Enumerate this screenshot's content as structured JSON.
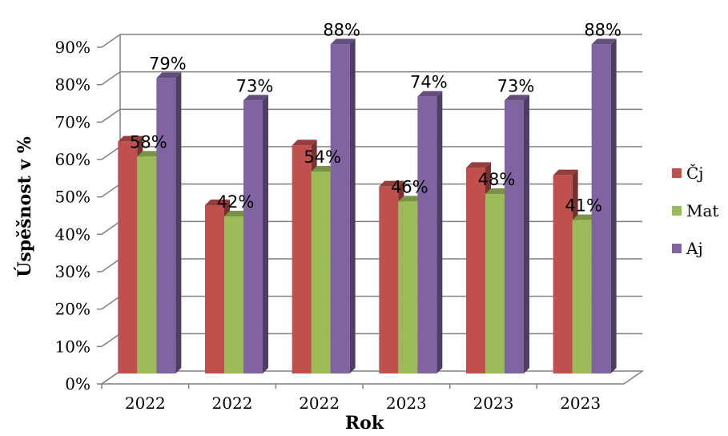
{
  "chart_data": {
    "type": "bar",
    "title": "",
    "xlabel": "Rok",
    "ylabel": "Úspěšnost v %",
    "categories": [
      "2022",
      "2022",
      "2022",
      "2023",
      "2023",
      "2023"
    ],
    "ylim": [
      0,
      90
    ],
    "yticks": [
      "0%",
      "10%",
      "20%",
      "30%",
      "40%",
      "50%",
      "60%",
      "70%",
      "80%",
      "90%"
    ],
    "grid": true,
    "legend": "right",
    "series": [
      {
        "name": "Čj",
        "color": "#C0504D",
        "values": [
          62,
          45,
          61,
          50,
          55,
          53
        ],
        "labels": [
          "",
          "",
          "",
          "",
          "",
          ""
        ]
      },
      {
        "name": "Mat",
        "color": "#9BBB59",
        "values": [
          58,
          42,
          54,
          46,
          48,
          41
        ],
        "labels": [
          "58%",
          "42%",
          "54%",
          "46%",
          "48%",
          "41%"
        ]
      },
      {
        "name": "Aj",
        "color": "#8064A2",
        "values": [
          79,
          73,
          88,
          74,
          73,
          88
        ],
        "labels": [
          "79%",
          "73%",
          "88%",
          "74%",
          "73%",
          "88%"
        ]
      }
    ]
  }
}
